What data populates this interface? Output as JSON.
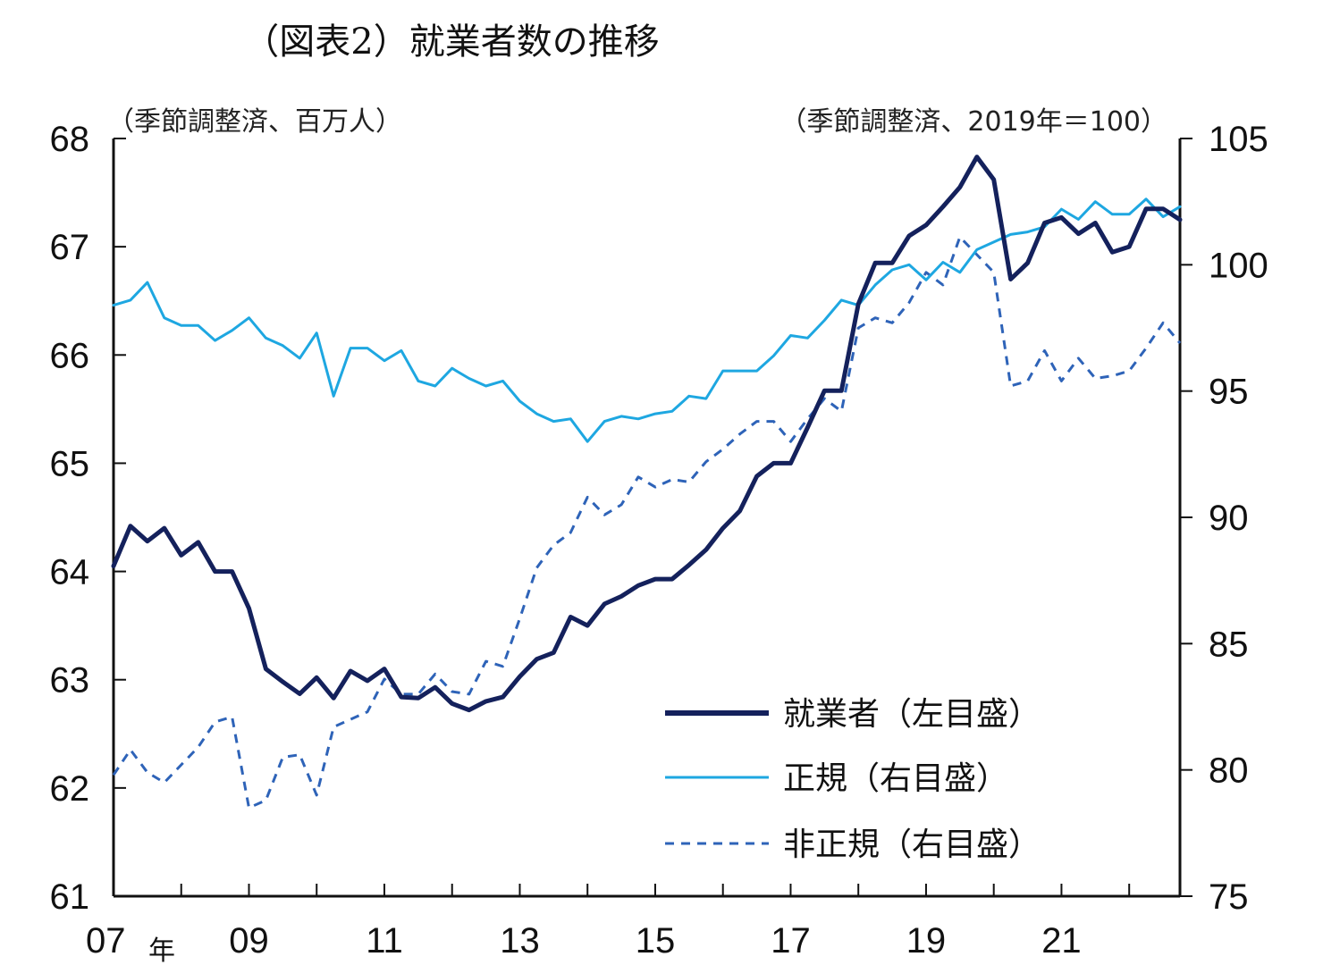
{
  "chart_data": {
    "type": "line",
    "title": "（図表2）就業者数の推移",
    "left_unit": "（季節調整済、百万人）",
    "right_unit": "（季節調整済、2019年＝100）",
    "x_tick_labels": [
      "07",
      "09",
      "11",
      "13",
      "15",
      "17",
      "19",
      "21"
    ],
    "x_tick_values": [
      2007,
      2009,
      2011,
      2013,
      2015,
      2017,
      2019,
      2021
    ],
    "x_year_suffix": "年",
    "xlim": [
      2007,
      2022.75
    ],
    "y_left": {
      "lim": [
        61,
        68
      ],
      "ticks": [
        61,
        62,
        63,
        64,
        65,
        66,
        67,
        68
      ]
    },
    "y_right": {
      "lim": [
        75,
        105
      ],
      "ticks": [
        75,
        80,
        85,
        90,
        95,
        100,
        105
      ]
    },
    "series": [
      {
        "name": "就業者（左目盛）",
        "axis": "left",
        "color": "#14215c",
        "style": "solid",
        "x": [
          2007.0,
          2007.25,
          2007.5,
          2007.75,
          2008.0,
          2008.25,
          2008.5,
          2008.75,
          2009.0,
          2009.25,
          2009.5,
          2009.75,
          2010.0,
          2010.25,
          2010.5,
          2010.75,
          2011.0,
          2011.25,
          2011.5,
          2011.75,
          2012.0,
          2012.25,
          2012.5,
          2012.75,
          2013.0,
          2013.25,
          2013.5,
          2013.75,
          2014.0,
          2014.25,
          2014.5,
          2014.75,
          2015.0,
          2015.25,
          2015.5,
          2015.75,
          2016.0,
          2016.25,
          2016.5,
          2016.75,
          2017.0,
          2017.25,
          2017.5,
          2017.75,
          2018.0,
          2018.25,
          2018.5,
          2018.75,
          2019.0,
          2019.25,
          2019.5,
          2019.75,
          2020.0,
          2020.25,
          2020.5,
          2020.75,
          2021.0,
          2021.25,
          2021.5,
          2021.75,
          2022.0,
          2022.25,
          2022.5,
          2022.75
        ],
        "values": [
          64.05,
          64.42,
          64.28,
          64.4,
          64.15,
          64.27,
          64.0,
          64.0,
          63.66,
          63.1,
          62.98,
          62.87,
          63.02,
          62.83,
          63.08,
          62.99,
          63.1,
          62.84,
          62.83,
          62.93,
          62.78,
          62.72,
          62.8,
          62.84,
          63.03,
          63.19,
          63.25,
          63.58,
          63.5,
          63.7,
          63.77,
          63.87,
          63.93,
          63.93,
          64.06,
          64.2,
          64.4,
          64.56,
          64.88,
          65.0,
          65.0,
          65.33,
          65.67,
          65.67,
          66.47,
          66.85,
          66.85,
          67.1,
          67.2,
          67.37,
          67.55,
          67.83,
          67.62,
          66.7,
          66.85,
          67.22,
          67.27,
          67.12,
          67.22,
          66.95,
          67.0,
          67.35,
          67.35,
          67.25
        ]
      },
      {
        "name": "正規（右目盛）",
        "axis": "right",
        "color": "#1ea7e1",
        "style": "solid",
        "x": [
          2007.0,
          2007.25,
          2007.5,
          2007.75,
          2008.0,
          2008.25,
          2008.5,
          2008.75,
          2009.0,
          2009.25,
          2009.5,
          2009.75,
          2010.0,
          2010.25,
          2010.5,
          2010.75,
          2011.0,
          2011.25,
          2011.5,
          2011.75,
          2012.0,
          2012.25,
          2012.5,
          2012.75,
          2013.0,
          2013.25,
          2013.5,
          2013.75,
          2014.0,
          2014.25,
          2014.5,
          2014.75,
          2015.0,
          2015.25,
          2015.5,
          2015.75,
          2016.0,
          2016.25,
          2016.5,
          2016.75,
          2017.0,
          2017.25,
          2017.5,
          2017.75,
          2018.0,
          2018.25,
          2018.5,
          2018.75,
          2019.0,
          2019.25,
          2019.5,
          2019.75,
          2020.0,
          2020.25,
          2020.5,
          2020.75,
          2021.0,
          2021.25,
          2021.5,
          2021.75,
          2022.0,
          2022.25,
          2022.5,
          2022.75
        ],
        "values": [
          98.4,
          98.6,
          99.3,
          97.9,
          97.6,
          97.6,
          97.0,
          97.4,
          97.9,
          97.1,
          96.8,
          96.3,
          97.3,
          94.8,
          96.7,
          96.7,
          96.2,
          96.6,
          95.4,
          95.2,
          95.9,
          95.5,
          95.2,
          95.4,
          94.6,
          94.1,
          93.8,
          93.9,
          93.0,
          93.8,
          94.0,
          93.9,
          94.1,
          94.2,
          94.8,
          94.7,
          95.8,
          95.8,
          95.8,
          96.4,
          97.2,
          97.1,
          97.8,
          98.6,
          98.4,
          99.2,
          99.8,
          100.0,
          99.4,
          100.1,
          99.7,
          100.6,
          100.9,
          101.2,
          101.3,
          101.5,
          102.2,
          101.8,
          102.5,
          102.0,
          102.0,
          102.6,
          101.9,
          102.3
        ]
      },
      {
        "name": "非正規（右目盛）",
        "axis": "right",
        "color": "#2e63b8",
        "style": "dashed",
        "x": [
          2007.0,
          2007.25,
          2007.5,
          2007.75,
          2008.0,
          2008.25,
          2008.5,
          2008.75,
          2009.0,
          2009.25,
          2009.5,
          2009.75,
          2010.0,
          2010.25,
          2010.5,
          2010.75,
          2011.0,
          2011.25,
          2011.5,
          2011.75,
          2012.0,
          2012.25,
          2012.5,
          2012.75,
          2013.0,
          2013.25,
          2013.5,
          2013.75,
          2014.0,
          2014.25,
          2014.5,
          2014.75,
          2015.0,
          2015.25,
          2015.5,
          2015.75,
          2016.0,
          2016.25,
          2016.5,
          2016.75,
          2017.0,
          2017.25,
          2017.5,
          2017.75,
          2018.0,
          2018.25,
          2018.5,
          2018.75,
          2019.0,
          2019.25,
          2019.5,
          2019.75,
          2020.0,
          2020.25,
          2020.5,
          2020.75,
          2021.0,
          2021.25,
          2021.5,
          2021.75,
          2022.0,
          2022.25,
          2022.5,
          2022.75
        ],
        "values": [
          79.8,
          80.8,
          79.9,
          79.5,
          80.2,
          80.9,
          81.9,
          82.1,
          78.5,
          78.8,
          80.5,
          80.6,
          79.0,
          81.7,
          82.0,
          82.3,
          83.6,
          83.0,
          83.0,
          83.8,
          83.1,
          83.0,
          84.3,
          84.1,
          86.0,
          88.0,
          88.9,
          89.4,
          90.8,
          90.1,
          90.5,
          91.6,
          91.2,
          91.5,
          91.4,
          92.2,
          92.7,
          93.3,
          93.8,
          93.8,
          93.0,
          93.9,
          94.7,
          94.2,
          97.5,
          97.9,
          97.7,
          98.5,
          99.7,
          99.2,
          101.1,
          100.4,
          99.7,
          95.2,
          95.4,
          96.6,
          95.4,
          96.3,
          95.5,
          95.6,
          95.8,
          96.7,
          97.7,
          96.9
        ]
      }
    ],
    "legend_placement": "bottom-right, inside plot",
    "grid": false
  }
}
